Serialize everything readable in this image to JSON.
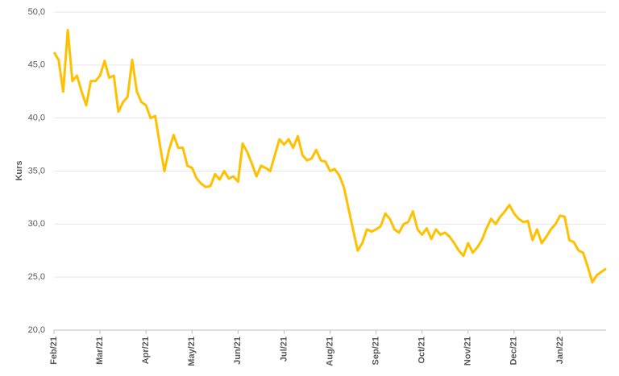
{
  "chart_data": {
    "type": "line",
    "y_label": "Kurs",
    "categories": [
      "Feb/21",
      null,
      null,
      null,
      null,
      null,
      null,
      null,
      null,
      null,
      "Mar/21",
      null,
      null,
      null,
      null,
      null,
      null,
      null,
      null,
      null,
      "Apr/21",
      null,
      null,
      null,
      null,
      null,
      null,
      null,
      null,
      null,
      "May/21",
      null,
      null,
      null,
      null,
      null,
      null,
      null,
      null,
      null,
      "Jun/21",
      null,
      null,
      null,
      null,
      null,
      null,
      null,
      null,
      null,
      "Jul/21",
      null,
      null,
      null,
      null,
      null,
      null,
      null,
      null,
      null,
      "Aug/21",
      null,
      null,
      null,
      null,
      null,
      null,
      null,
      null,
      null,
      "Sep/21",
      null,
      null,
      null,
      null,
      null,
      null,
      null,
      null,
      null,
      "Oct/21",
      null,
      null,
      null,
      null,
      null,
      null,
      null,
      null,
      null,
      "Nov/21",
      null,
      null,
      null,
      null,
      null,
      null,
      null,
      null,
      null,
      "Dec/21",
      null,
      null,
      null,
      null,
      null,
      null,
      null,
      null,
      null,
      "Jan/22",
      null,
      null,
      null,
      null,
      null,
      null,
      null,
      null,
      null,
      null
    ],
    "values": [
      46.2,
      45.5,
      42.5,
      48.3,
      43.5,
      44,
      42.5,
      41.2,
      43.5,
      43.5,
      44,
      45.4,
      43.8,
      44,
      40.6,
      41.5,
      42,
      45.5,
      42.5,
      41.5,
      41.2,
      40,
      40.2,
      37.5,
      35,
      37,
      38.4,
      37.2,
      37.2,
      35.5,
      35.3,
      34.3,
      33.8,
      33.5,
      33.6,
      34.7,
      34.2,
      35,
      34.3,
      34.5,
      34,
      37.6,
      36.8,
      35.7,
      34.5,
      35.5,
      35.3,
      35,
      36.5,
      38,
      37.5,
      38,
      37.2,
      38.3,
      36.5,
      36,
      36.2,
      37,
      36,
      35.9,
      35,
      35.2,
      34.6,
      33.5,
      31.5,
      29.5,
      27.5,
      28.2,
      29.5,
      29.3,
      29.5,
      29.8,
      31,
      30.5,
      29.5,
      29.2,
      30,
      30.2,
      31.2,
      29.5,
      29,
      29.6,
      28.6,
      29.5,
      29,
      29.2,
      28.8,
      28.2,
      27.5,
      27,
      28.2,
      27.3,
      27.8,
      28.5,
      29.6,
      30.5,
      30,
      30.7,
      31.2,
      31.8,
      31,
      30.5,
      30.2,
      30.3,
      28.5,
      29.5,
      28.2,
      28.8,
      29.5,
      30,
      30.8,
      30.7,
      28.5,
      28.3,
      27.5,
      27.3,
      26,
      24.5,
      25.2,
      25.5,
      25.8
    ],
    "color": "#ffc000",
    "ylim": [
      20,
      50
    ],
    "yticks": [
      {
        "value": 20,
        "label": "20,0"
      },
      {
        "value": 25,
        "label": "25,0"
      },
      {
        "value": 30,
        "label": "30,0"
      },
      {
        "value": 35,
        "label": "35,0"
      },
      {
        "value": 40,
        "label": "40,0"
      },
      {
        "value": 45,
        "label": "45,0"
      },
      {
        "value": 50,
        "label": "50,0"
      }
    ],
    "grid": true
  }
}
